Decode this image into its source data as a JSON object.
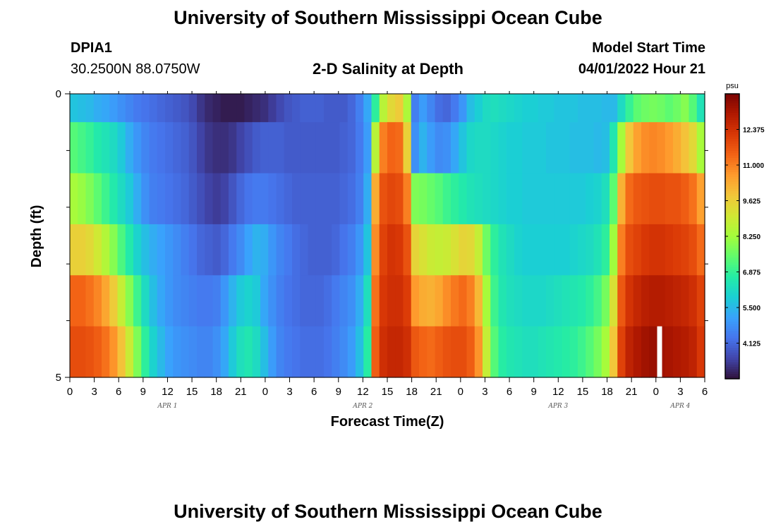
{
  "header": {
    "main_title": "University of Southern Mississippi Ocean Cube",
    "station_id": "DPIA1",
    "station_coords": "30.2500N  88.0750W",
    "chart_title": "2-D Salinity at Depth",
    "model_start_label": "Model Start Time",
    "model_start_value": "04/01/2022 Hour 21"
  },
  "footer": {
    "repeated_title": "University of Southern Mississippi Ocean Cube"
  },
  "chart_data": {
    "type": "heatmap",
    "title": "2-D Salinity at Depth",
    "xlabel": "Forecast Time(Z)",
    "ylabel": "Depth (ft)",
    "x_tick_labels": [
      "0",
      "3",
      "6",
      "9",
      "12",
      "15",
      "18",
      "21",
      "0",
      "3",
      "6",
      "9",
      "12",
      "15",
      "18",
      "21",
      "0",
      "3",
      "6",
      "9",
      "12",
      "15",
      "18",
      "21",
      "0",
      "3",
      "6"
    ],
    "date_labels": [
      {
        "label": "APR 1",
        "hour_index": 12
      },
      {
        "label": "APR 2",
        "hour_index": 36
      },
      {
        "label": "APR 3",
        "hour_index": 60
      },
      {
        "label": "APR 4",
        "hour_index": 75
      }
    ],
    "y_tick_labels": [
      "0",
      "5"
    ],
    "ylim": [
      0,
      5
    ],
    "depth_levels": 5,
    "hours": 79,
    "colorbar": {
      "unit": "psu",
      "vmin": 2.75,
      "vmax": 13.75,
      "tick_values": [
        "12.375",
        "11.000",
        "9.625",
        "8.250",
        "6.875",
        "5.500",
        "4.125"
      ],
      "colors": [
        "#30123b",
        "#4145ab",
        "#4675ed",
        "#39a2fc",
        "#1bcfd4",
        "#24eca6",
        "#61fc6c",
        "#a4fc3b",
        "#d1e834",
        "#f3c63a",
        "#fe9b2d",
        "#f36315",
        "#d93806",
        "#b11901",
        "#7a0402"
      ]
    },
    "salinity_rows": [
      [
        5.7,
        5.6,
        5.5,
        5.3,
        5.2,
        5.0,
        4.8,
        4.6,
        4.4,
        4.3,
        4.2,
        4.1,
        4.0,
        3.9,
        3.8,
        3.6,
        3.3,
        3.1,
        3.0,
        2.9,
        2.9,
        2.9,
        3.0,
        3.1,
        3.2,
        3.4,
        3.6,
        3.8,
        3.9,
        4.0,
        4.0,
        4.0,
        3.9,
        3.9,
        3.9,
        4.1,
        4.5,
        5.2,
        6.8,
        8.6,
        9.4,
        9.7,
        8.4,
        4.5,
        5.0,
        4.6,
        4.2,
        4.1,
        4.4,
        4.9,
        5.6,
        5.9,
        6.2,
        6.3,
        6.2,
        6.1,
        6.0,
        5.9,
        5.9,
        5.8,
        5.8,
        5.7,
        5.7,
        5.7,
        5.6,
        5.6,
        5.6,
        5.5,
        5.5,
        6.2,
        6.9,
        7.4,
        7.6,
        7.7,
        7.6,
        7.4,
        7.6,
        7.9,
        7.3,
        6.4
      ],
      [
        7.3,
        7.1,
        6.9,
        6.6,
        6.4,
        6.2,
        5.8,
        5.3,
        4.9,
        4.6,
        4.4,
        4.3,
        4.2,
        4.1,
        4.0,
        3.8,
        3.5,
        3.3,
        3.2,
        3.2,
        3.3,
        3.5,
        3.7,
        3.9,
        4.0,
        4.0,
        4.0,
        3.9,
        3.9,
        3.9,
        3.9,
        3.9,
        3.9,
        3.9,
        4.0,
        4.1,
        4.4,
        5.0,
        8.6,
        11.0,
        11.4,
        11.3,
        9.6,
        4.8,
        5.4,
        5.0,
        4.7,
        4.8,
        5.2,
        5.7,
        6.1,
        6.2,
        6.2,
        6.1,
        6.0,
        5.9,
        5.9,
        5.8,
        5.8,
        5.8,
        5.7,
        5.7,
        5.7,
        5.6,
        5.6,
        5.6,
        5.5,
        5.6,
        6.5,
        8.3,
        9.8,
        10.5,
        10.8,
        10.9,
        10.8,
        10.6,
        10.3,
        9.9,
        9.4,
        8.3
      ],
      [
        8.3,
        8.1,
        7.8,
        7.4,
        7.0,
        6.6,
        6.2,
        5.8,
        5.3,
        4.8,
        4.5,
        4.4,
        4.3,
        4.2,
        4.1,
        3.9,
        3.7,
        3.5,
        3.4,
        3.5,
        3.8,
        4.1,
        4.3,
        4.4,
        4.4,
        4.3,
        4.2,
        4.1,
        4.0,
        4.0,
        4.0,
        4.0,
        4.0,
        4.0,
        4.1,
        4.2,
        4.5,
        5.3,
        10.3,
        11.7,
        11.9,
        11.8,
        11.0,
        7.8,
        7.7,
        7.5,
        7.3,
        7.0,
        6.8,
        6.6,
        6.4,
        6.3,
        6.2,
        6.1,
        6.0,
        5.9,
        5.9,
        5.8,
        5.8,
        5.8,
        5.8,
        5.8,
        5.8,
        5.8,
        5.8,
        5.9,
        6.0,
        6.3,
        7.4,
        10.2,
        11.3,
        11.6,
        11.7,
        11.8,
        11.8,
        11.7,
        11.7,
        11.5,
        11.2,
        10.5
      ],
      [
        9.6,
        9.6,
        9.4,
        9.0,
        8.5,
        7.9,
        7.2,
        6.6,
        6.0,
        5.6,
        5.3,
        5.1,
        4.9,
        4.7,
        4.5,
        4.3,
        4.1,
        4.0,
        3.9,
        4.1,
        4.4,
        4.7,
        5.1,
        5.4,
        5.3,
        4.9,
        4.6,
        4.4,
        4.2,
        4.1,
        4.0,
        4.0,
        4.0,
        4.1,
        4.3,
        4.5,
        4.9,
        5.7,
        10.8,
        12.0,
        12.3,
        12.2,
        11.7,
        9.5,
        9.2,
        8.9,
        8.8,
        8.9,
        9.2,
        9.5,
        9.4,
        8.8,
        7.6,
        6.8,
        6.4,
        6.2,
        6.0,
        5.9,
        5.9,
        5.9,
        5.9,
        5.9,
        5.9,
        6.0,
        6.1,
        6.2,
        6.4,
        6.8,
        8.2,
        11.0,
        11.8,
        12.0,
        12.2,
        12.3,
        12.3,
        12.2,
        12.1,
        12.0,
        11.8,
        11.3
      ],
      [
        11.4,
        11.4,
        11.2,
        10.9,
        10.4,
        9.7,
        8.8,
        7.9,
        7.0,
        6.2,
        5.6,
        5.2,
        4.9,
        4.7,
        4.6,
        4.5,
        4.4,
        4.4,
        4.5,
        4.9,
        5.4,
        5.8,
        6.0,
        5.8,
        5.2,
        4.8,
        4.5,
        4.3,
        4.2,
        4.1,
        4.1,
        4.1,
        4.2,
        4.4,
        4.6,
        4.8,
        5.3,
        6.3,
        11.2,
        12.2,
        12.4,
        12.4,
        12.1,
        10.6,
        10.3,
        10.2,
        10.4,
        10.8,
        11.1,
        11.3,
        11.0,
        10.1,
        8.3,
        7.0,
        6.5,
        6.3,
        6.2,
        6.1,
        6.1,
        6.1,
        6.2,
        6.3,
        6.4,
        6.5,
        6.6,
        6.8,
        7.1,
        7.7,
        9.2,
        11.6,
        12.3,
        12.6,
        12.8,
        12.9,
        12.9,
        12.8,
        12.7,
        12.6,
        12.4,
        12.0
      ],
      [
        11.8,
        11.8,
        11.7,
        11.5,
        11.2,
        10.7,
        9.9,
        8.9,
        7.8,
        6.8,
        6.0,
        5.5,
        5.1,
        4.9,
        4.8,
        4.7,
        4.6,
        4.6,
        4.8,
        5.2,
        5.8,
        6.3,
        6.5,
        6.2,
        5.6,
        5.0,
        4.6,
        4.4,
        4.3,
        4.2,
        4.2,
        4.2,
        4.3,
        4.5,
        4.7,
        5.0,
        5.6,
        6.7,
        11.5,
        12.4,
        12.6,
        12.6,
        12.4,
        11.6,
        11.4,
        11.3,
        11.5,
        11.7,
        11.8,
        11.8,
        11.5,
        10.7,
        8.8,
        7.3,
        6.7,
        6.5,
        6.4,
        6.3,
        6.3,
        6.4,
        6.5,
        6.6,
        6.7,
        6.8,
        7.0,
        7.3,
        7.7,
        8.3,
        9.8,
        12.0,
        12.7,
        13.0,
        13.2,
        13.3,
        13.2,
        13.1,
        13.0,
        12.9,
        12.7,
        12.2
      ]
    ],
    "gap_marker_hour_index": 74
  }
}
